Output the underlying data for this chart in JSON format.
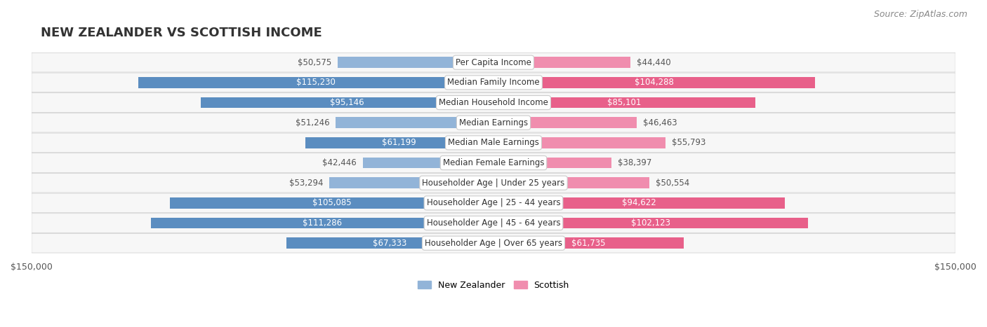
{
  "title": "NEW ZEALANDER VS SCOTTISH INCOME",
  "source": "Source: ZipAtlas.com",
  "categories": [
    "Per Capita Income",
    "Median Family Income",
    "Median Household Income",
    "Median Earnings",
    "Median Male Earnings",
    "Median Female Earnings",
    "Householder Age | Under 25 years",
    "Householder Age | 25 - 44 years",
    "Householder Age | 45 - 64 years",
    "Householder Age | Over 65 years"
  ],
  "nz_values": [
    50575,
    115230,
    95146,
    51246,
    61199,
    42446,
    53294,
    105085,
    111286,
    67333
  ],
  "sc_values": [
    44440,
    104288,
    85101,
    46463,
    55793,
    38397,
    50554,
    94622,
    102123,
    61735
  ],
  "nz_labels": [
    "$50,575",
    "$115,230",
    "$95,146",
    "$51,246",
    "$61,199",
    "$42,446",
    "$53,294",
    "$105,085",
    "$111,286",
    "$67,333"
  ],
  "sc_labels": [
    "$44,440",
    "$104,288",
    "$85,101",
    "$46,463",
    "$55,793",
    "$38,397",
    "$50,554",
    "$94,622",
    "$102,123",
    "$61,735"
  ],
  "nz_color": "#92B4D8",
  "sc_color": "#F08DAE",
  "nz_color_strong": "#5B8DC0",
  "sc_color_strong": "#E8608A",
  "max_value": 150000,
  "x_label_left": "$150,000",
  "x_label_right": "$150,000",
  "bar_height": 0.55,
  "row_bg_color": "#f0f0f0",
  "row_bg_alt": "#ffffff",
  "legend_nz": "New Zealander",
  "legend_sc": "Scottish",
  "title_fontsize": 13,
  "source_fontsize": 9,
  "label_fontsize": 8.5,
  "category_fontsize": 8.5
}
